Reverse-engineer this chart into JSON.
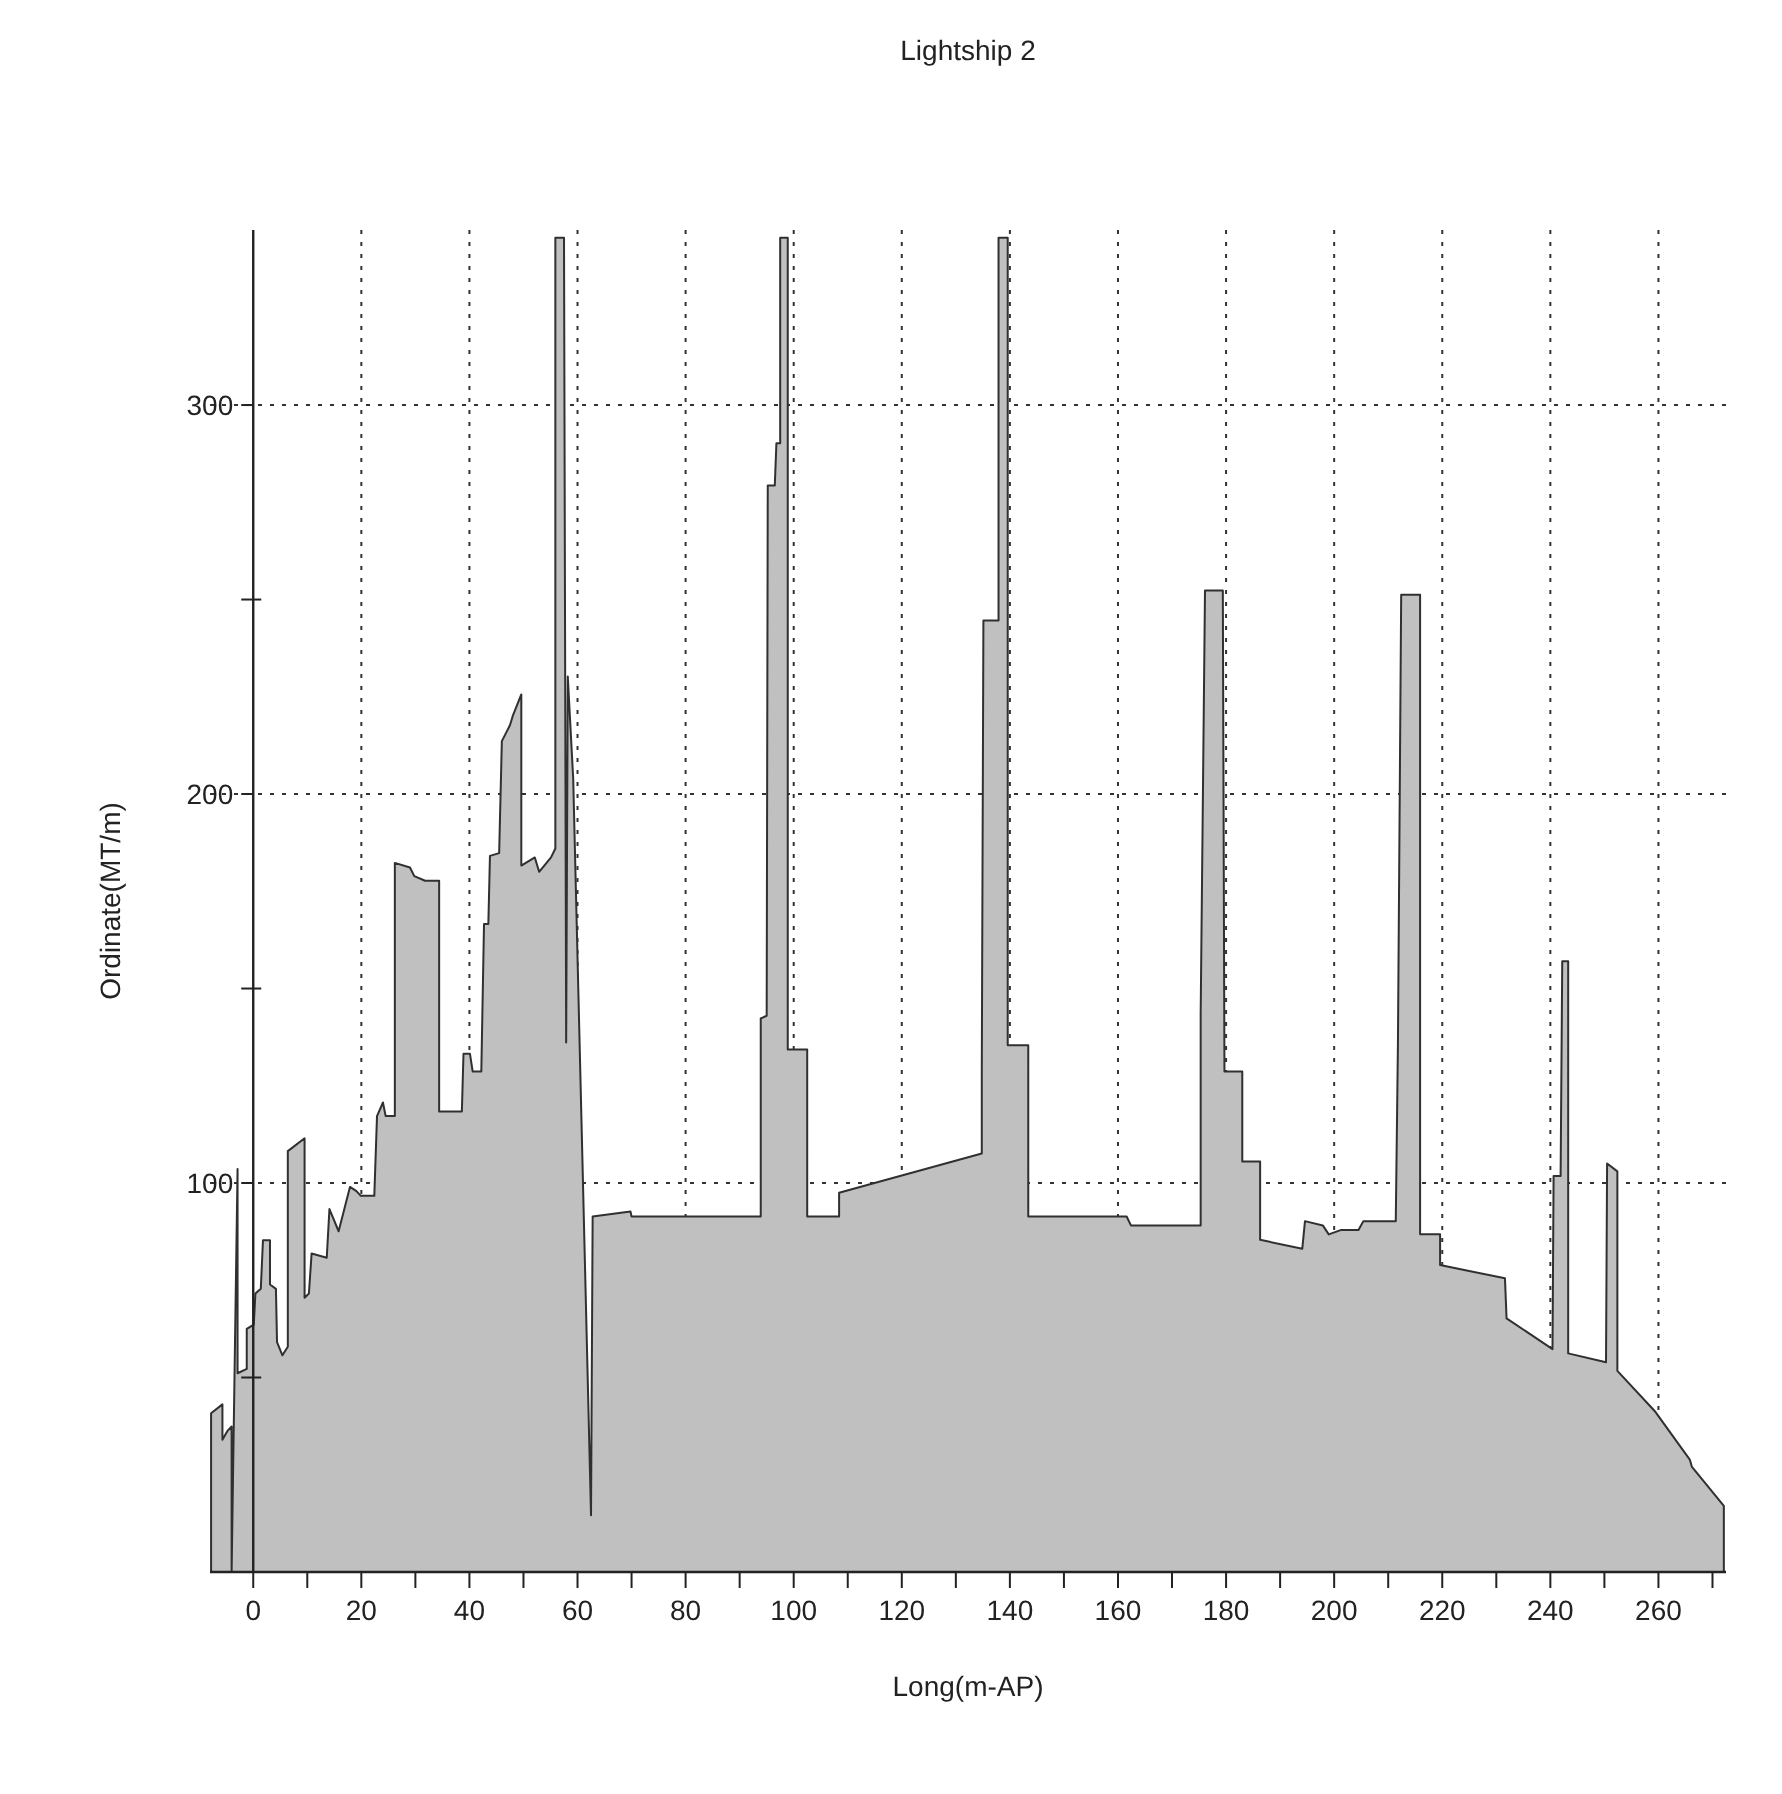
{
  "chart_data": {
    "type": "area",
    "title": "Lightship 2",
    "xlabel": "Long(m-AP)",
    "ylabel": "Ordinate(MT/m)",
    "color": "#c0c0c0",
    "grid": true,
    "xlim": [
      -8,
      272.5
    ],
    "ylim": [
      0,
      345
    ],
    "xticks": [
      0,
      {
        "value": 10,
        "label": null
      },
      20,
      {
        "value": 30,
        "label": null
      },
      40,
      {
        "value": 50,
        "label": null
      },
      60,
      {
        "value": 70,
        "label": null
      },
      80,
      {
        "value": 90,
        "label": null
      },
      100,
      {
        "value": 110,
        "label": null
      },
      120,
      {
        "value": 130,
        "label": null
      },
      140,
      {
        "value": 150,
        "label": null
      },
      160,
      {
        "value": 170,
        "label": null
      },
      180,
      {
        "value": 190,
        "label": null
      },
      200,
      {
        "value": 210,
        "label": null
      },
      220,
      {
        "value": 230,
        "label": null
      },
      240,
      {
        "value": 250,
        "label": null
      },
      260,
      {
        "value": 270,
        "label": null
      }
    ],
    "yticks": [
      {
        "value": 50,
        "label": null
      },
      100,
      {
        "value": 150,
        "label": null
      },
      200,
      {
        "value": 250,
        "label": null
      },
      300
    ],
    "x": [
      -7.8,
      -7.8,
      -5.7,
      -5.7,
      -4.8,
      -4.0,
      -4.0,
      -2.9,
      -2.9,
      -1.2,
      -1.2,
      0.1,
      0.4,
      1.4,
      1.8,
      3.1,
      3.1,
      4.2,
      4.4,
      5.4,
      6.4,
      6.4,
      9.5,
      9.5,
      10.3,
      10.8,
      13.6,
      14.1,
      15.8,
      17.9,
      19.1,
      19.9,
      22.4,
      22.9,
      24.0,
      24.5,
      26.2,
      26.2,
      29.0,
      29.8,
      31.8,
      34.4,
      34.4,
      38.6,
      38.9,
      40.1,
      40.6,
      42.2,
      42.7,
      43.5,
      43.8,
      45.5,
      46.0,
      47.5,
      48.0,
      49.6,
      49.6,
      52.1,
      52.9,
      55.1,
      55.9,
      55.9,
      57.5,
      57.9,
      58.2,
      59.2,
      62.5,
      62.8,
      69.8,
      70.0,
      93.9,
      93.9,
      95.0,
      95.2,
      96.5,
      96.8,
      97.5,
      97.5,
      98.9,
      98.9,
      102.5,
      102.5,
      108.4,
      108.4,
      134.8,
      134.8,
      135.1,
      137.9,
      137.9,
      139.6,
      139.6,
      143.4,
      143.4,
      161.6,
      162.4,
      175.3,
      175.3,
      176.1,
      179.4,
      179.7,
      183.0,
      183.0,
      186.3,
      186.3,
      194.1,
      194.6,
      197.9,
      199.0,
      201.2,
      204.5,
      205.4,
      211.4,
      211.8,
      212.4,
      215.9,
      215.9,
      219.6,
      219.6,
      231.6,
      231.9,
      240.4,
      240.6,
      241.9,
      242.2,
      243.3,
      243.3,
      250.3,
      250.5,
      252.4,
      252.4,
      259.3,
      265.8,
      266.2,
      272.1,
      272.1
    ],
    "values": [
      0,
      40.8,
      43.1,
      34,
      36.2,
      37.4,
      0,
      103.6,
      51.1,
      52.2,
      62.5,
      63.6,
      71.6,
      72.8,
      85.3,
      85.3,
      73.9,
      72.8,
      59.1,
      55.7,
      57.9,
      108.2,
      111.5,
      70.5,
      71.6,
      81.9,
      80.8,
      93.3,
      87.6,
      99,
      97.9,
      96.7,
      96.7,
      117.2,
      120.7,
      117.2,
      117.2,
      182.3,
      181.1,
      178.9,
      177.7,
      177.7,
      118.4,
      118.4,
      133.2,
      133.2,
      128.7,
      128.7,
      166.6,
      166.6,
      184.1,
      184.8,
      213.6,
      217.7,
      220,
      225.6,
      181.6,
      183.7,
      180,
      183.7,
      186,
      343,
      343,
      136.1,
      230.2,
      204,
      14.6,
      91.4,
      92.7,
      91.4,
      91.4,
      142.3,
      143,
      279.3,
      279.3,
      290.2,
      290.2,
      343,
      343,
      134.3,
      134.3,
      91.4,
      91.4,
      97.5,
      107.6,
      128.7,
      244.6,
      244.6,
      343,
      343,
      135.4,
      135.4,
      91.4,
      91.4,
      89.1,
      89.1,
      143.5,
      252.3,
      252.3,
      128.7,
      128.7,
      105.5,
      105.5,
      85.4,
      83.1,
      90.2,
      89.1,
      86.8,
      87.9,
      87.9,
      90.2,
      90.2,
      135.9,
      251.2,
      251.2,
      86.8,
      86.8,
      78.9,
      75.5,
      65.2,
      57.3,
      101.8,
      101.8,
      157,
      157,
      56.2,
      53.9,
      105,
      103,
      51.7,
      41.4,
      28.9,
      27,
      17,
      0
    ]
  }
}
